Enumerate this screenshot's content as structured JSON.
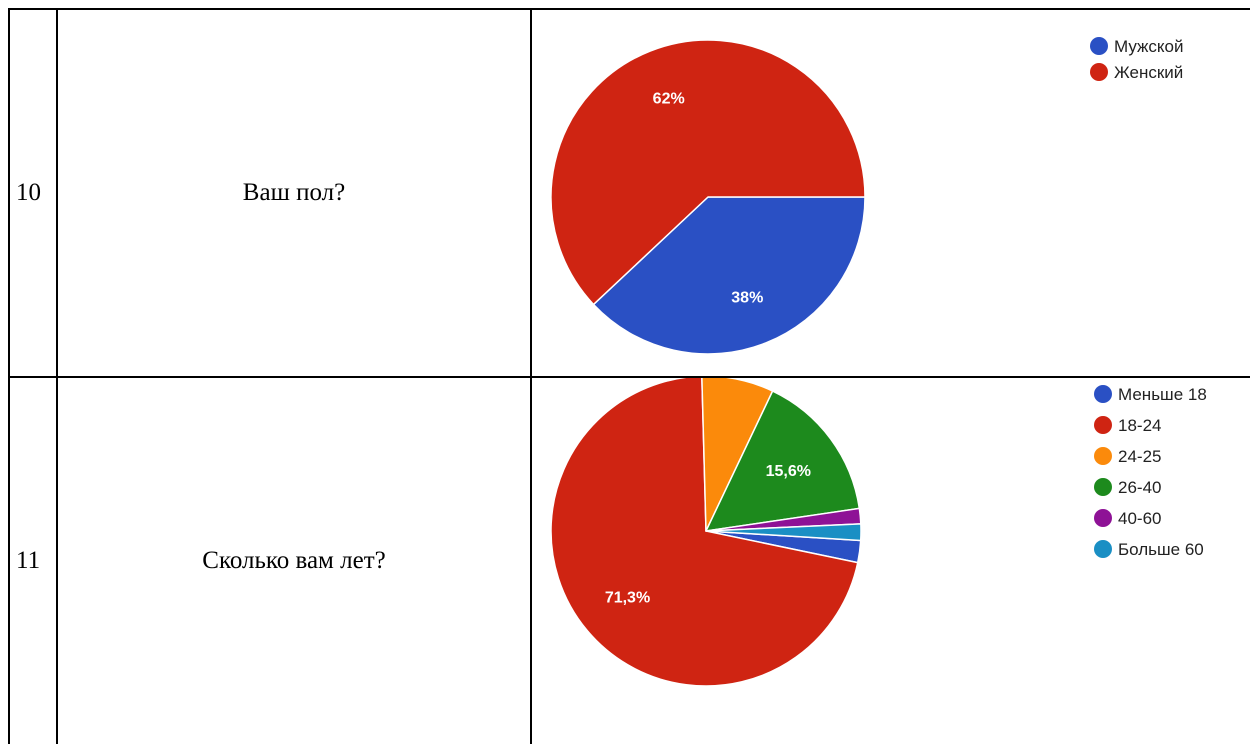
{
  "rows": [
    {
      "number": "10",
      "question": "Ваш пол?"
    },
    {
      "number": "11",
      "question": "Сколько вам лет?"
    }
  ],
  "chart_data": [
    {
      "type": "pie",
      "categories": [
        "Мужской",
        "Женский"
      ],
      "values": [
        38,
        62
      ],
      "data_labels": [
        "38%",
        "62%"
      ],
      "colors": [
        "#2a50c4",
        "#cf2412"
      ],
      "legend_position": "top-right"
    },
    {
      "type": "pie",
      "categories": [
        "Меньше 18",
        "18-24",
        "24-25",
        "26-40",
        "40-60",
        "Больше 60"
      ],
      "values": [
        2.3,
        71.3,
        7.5,
        15.6,
        1.6,
        1.7
      ],
      "data_labels": [
        "",
        "71,3%",
        "",
        "15,6%",
        "",
        ""
      ],
      "colors": [
        "#2a50c4",
        "#cf2412",
        "#fb8a0b",
        "#1d8a1d",
        "#8e1296",
        "#1a8fc4"
      ],
      "legend_position": "top-right"
    }
  ]
}
